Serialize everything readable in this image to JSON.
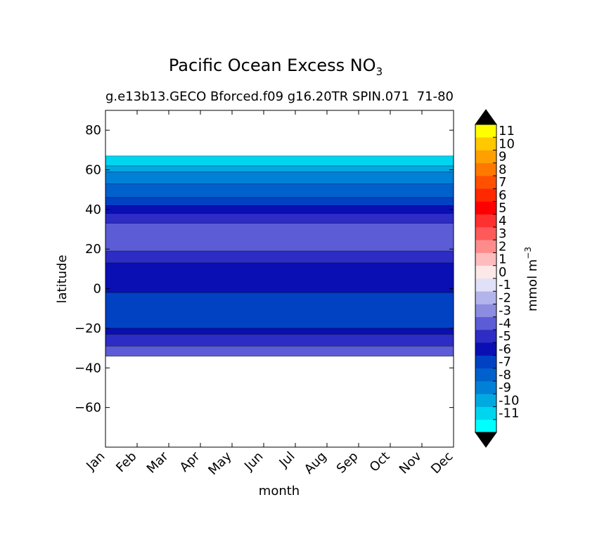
{
  "chart_data": {
    "type": "heatmap",
    "title": "Pacific Ocean Excess NO",
    "title_subscript": "3",
    "subtitle_left": "g.e13b13.GECO Bforced.f09 g16.20TR SPIN.071",
    "subtitle_right": "71-80",
    "xlabel": "month",
    "ylabel": "latitude",
    "x_categories": [
      "Jan",
      "Feb",
      "Mar",
      "Apr",
      "May",
      "Jun",
      "Jul",
      "Aug",
      "Sep",
      "Oct",
      "Nov",
      "Dec"
    ],
    "y_ticks": [
      80,
      60,
      40,
      20,
      0,
      -20,
      -40,
      -60
    ],
    "y_tick_labels": [
      "80",
      "60",
      "40",
      "20",
      "0",
      "−20",
      "−40",
      "−60"
    ],
    "ylim": [
      -80,
      90
    ],
    "data_lat_range": [
      -34,
      67
    ],
    "colorbar": {
      "label": "mmol m",
      "label_superscript": "−3",
      "levels": [
        -12,
        -11,
        -10,
        -9,
        -8,
        -7,
        -6,
        -5,
        -4,
        -3,
        -2,
        -1,
        0,
        1,
        2,
        3,
        4,
        5,
        6,
        7,
        8,
        9,
        10,
        11,
        12
      ],
      "tick_labels": [
        "-11",
        "-10",
        "-9",
        "-8",
        "-7",
        "-6",
        "-5",
        "-4",
        "-3",
        "-2",
        "-1",
        "0",
        "1",
        "2",
        "3",
        "4",
        "5",
        "6",
        "7",
        "8",
        "9",
        "10",
        "11"
      ],
      "colors": [
        "#00ffff",
        "#00d5f0",
        "#00aae0",
        "#0080d6",
        "#0060cc",
        "#0042c2",
        "#0a0fb4",
        "#2d2cc4",
        "#5c5cd6",
        "#8c8ce0",
        "#b4b4ec",
        "#e0e0f8",
        "#fde8e8",
        "#ffbcbc",
        "#ff8c8c",
        "#ff5a5a",
        "#ff3030",
        "#ff0000",
        "#ff2800",
        "#ff5000",
        "#ff7800",
        "#ffa000",
        "#ffc800",
        "#ffff00"
      ],
      "extend": "both",
      "extend_color": "#000000"
    },
    "bands": [
      {
        "lat_top": 67,
        "lat_bottom": 62,
        "value": -11
      },
      {
        "lat_top": 62,
        "lat_bottom": 59,
        "value": -10
      },
      {
        "lat_top": 59,
        "lat_bottom": 53,
        "value": -9
      },
      {
        "lat_top": 53,
        "lat_bottom": 46,
        "value": -8
      },
      {
        "lat_top": 46,
        "lat_bottom": 42,
        "value": -7
      },
      {
        "lat_top": 42,
        "lat_bottom": 38,
        "value": -6
      },
      {
        "lat_top": 38,
        "lat_bottom": 33,
        "value": -5
      },
      {
        "lat_top": 33,
        "lat_bottom": 19,
        "value": -4
      },
      {
        "lat_top": 19,
        "lat_bottom": 13,
        "value": -5
      },
      {
        "lat_top": 13,
        "lat_bottom": -2,
        "value": -6
      },
      {
        "lat_top": -2,
        "lat_bottom": -20,
        "value": -7
      },
      {
        "lat_top": -20,
        "lat_bottom": -23,
        "value": -6
      },
      {
        "lat_top": -23,
        "lat_bottom": -29,
        "value": -5
      },
      {
        "lat_top": -29,
        "lat_bottom": -34,
        "value": -4
      }
    ],
    "grid": false
  }
}
